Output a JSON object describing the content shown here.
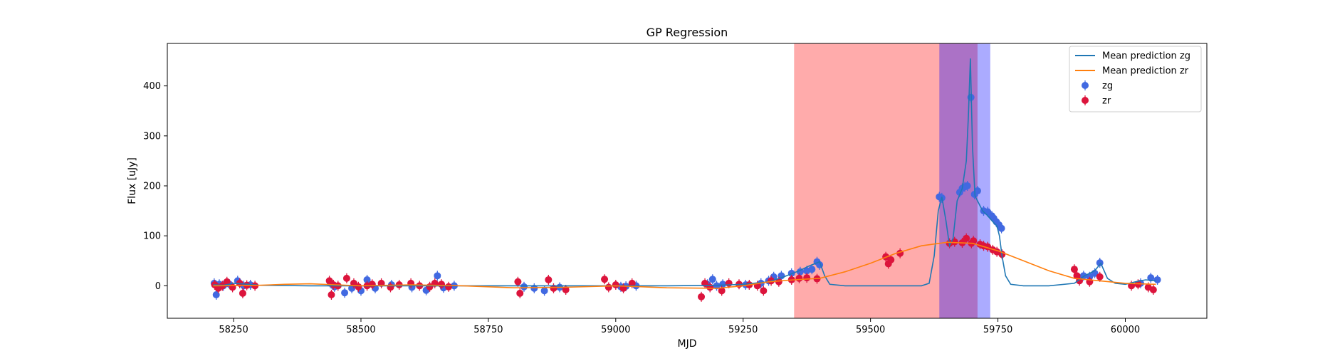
{
  "chart_data": {
    "type": "line",
    "title": "GP Regression",
    "xlabel": "MJD",
    "ylabel": "Flux [uJy]",
    "xlim": [
      58120,
      60160
    ],
    "ylim": [
      -65,
      485
    ],
    "xticks": [
      58250,
      58500,
      58750,
      59000,
      59250,
      59500,
      59750,
      60000
    ],
    "yticks": [
      0,
      100,
      200,
      300,
      400
    ],
    "legend_position": "top-right",
    "spans": [
      {
        "x0": 59350,
        "x1": 59710,
        "color": "#ff0000",
        "opacity": 0.33
      },
      {
        "x0": 59635,
        "x1": 59735,
        "color": "#0000ff",
        "opacity": 0.33
      }
    ],
    "series": [
      {
        "name": "Mean prediction zg",
        "kind": "line",
        "color": "#1f77b4",
        "x": [
          58210,
          58230,
          58250,
          58280,
          58300,
          58400,
          58500,
          58600,
          58700,
          58800,
          58900,
          59000,
          59100,
          59200,
          59250,
          59300,
          59330,
          59360,
          59380,
          59400,
          59410,
          59420,
          59450,
          59500,
          59550,
          59600,
          59615,
          59625,
          59633,
          59640,
          59648,
          59655,
          59662,
          59670,
          59680,
          59688,
          59692,
          59696,
          59700,
          59705,
          59710,
          59720,
          59730,
          59740,
          59748,
          59753,
          59758,
          59765,
          59775,
          59800,
          59850,
          59900,
          59920,
          59940,
          59952,
          59965,
          59980,
          60000,
          60020,
          60040,
          60060
        ],
        "y": [
          2,
          1,
          5,
          3,
          1,
          0,
          0,
          0,
          0,
          0,
          0,
          0,
          0,
          1,
          3,
          8,
          18,
          30,
          40,
          48,
          20,
          3,
          0,
          0,
          0,
          0,
          5,
          60,
          150,
          178,
          130,
          80,
          95,
          170,
          195,
          250,
          340,
          455,
          280,
          180,
          170,
          150,
          140,
          128,
          120,
          100,
          60,
          20,
          3,
          0,
          0,
          5,
          20,
          30,
          45,
          15,
          5,
          3,
          8,
          12,
          10
        ]
      },
      {
        "name": "Mean prediction zr",
        "kind": "line",
        "color": "#ff7f0e",
        "x": [
          58210,
          58300,
          58350,
          58400,
          58450,
          58500,
          58600,
          58700,
          58800,
          58900,
          59000,
          59100,
          59200,
          59250,
          59300,
          59350,
          59400,
          59450,
          59500,
          59550,
          59600,
          59650,
          59700,
          59750,
          59800,
          59850,
          59900,
          59950,
          60000,
          60060
        ],
        "y": [
          0,
          1,
          3,
          4,
          2,
          0,
          2,
          0,
          -4,
          -3,
          0,
          -4,
          -5,
          0,
          8,
          12,
          15,
          28,
          45,
          65,
          80,
          87,
          85,
          70,
          50,
          30,
          15,
          10,
          5,
          3
        ]
      },
      {
        "name": "zg",
        "kind": "scatter",
        "color": "#4169e1",
        "x": [
          58212,
          58216,
          58222,
          58230,
          58242,
          58258,
          58270,
          58283,
          58440,
          58448,
          58468,
          58482,
          58500,
          58512,
          58528,
          58560,
          58600,
          58628,
          58650,
          58662,
          58683,
          58820,
          58840,
          58860,
          58890,
          59010,
          59020,
          59040,
          59180,
          59190,
          59198,
          59210,
          59255,
          59285,
          59300,
          59310,
          59325,
          59345,
          59362,
          59375,
          59385,
          59395,
          59400,
          59635,
          59640,
          59675,
          59680,
          59685,
          59690,
          59697,
          59704,
          59710,
          59722,
          59730,
          59738,
          59742,
          59747,
          59752,
          59757,
          59918,
          59930,
          59940,
          59950,
          60030,
          60050,
          60063
        ],
        "y": [
          5,
          -18,
          3,
          0,
          3,
          10,
          0,
          2,
          5,
          -2,
          -14,
          -5,
          -10,
          12,
          -5,
          2,
          -3,
          -9,
          20,
          -4,
          0,
          -2,
          -5,
          -10,
          -3,
          -2,
          -1,
          0,
          3,
          13,
          0,
          3,
          2,
          5,
          10,
          18,
          20,
          25,
          28,
          30,
          33,
          48,
          42,
          178,
          176,
          187,
          195,
          198,
          200,
          377,
          183,
          190,
          150,
          148,
          140,
          135,
          128,
          122,
          115,
          20,
          18,
          25,
          46,
          5,
          16,
          12
        ]
      },
      {
        "name": "zr",
        "kind": "scatter",
        "color": "#dc143c",
        "x": [
          58213,
          58220,
          58228,
          58237,
          58248,
          58262,
          58268,
          58276,
          58292,
          58438,
          58442,
          58446,
          58455,
          58472,
          58486,
          58495,
          58512,
          58522,
          58540,
          58558,
          58575,
          58598,
          58615,
          58635,
          58645,
          58658,
          58672,
          58808,
          58812,
          58868,
          58878,
          58902,
          58978,
          58986,
          59000,
          59015,
          59032,
          59168,
          59175,
          59185,
          59208,
          59222,
          59242,
          59262,
          59278,
          59290,
          59305,
          59320,
          59345,
          59360,
          59375,
          59395,
          59530,
          59535,
          59540,
          59558,
          59655,
          59665,
          59680,
          59688,
          59698,
          59702,
          59715,
          59722,
          59730,
          59740,
          59748,
          59758,
          59900,
          59905,
          59910,
          59930,
          59950,
          60012,
          60025,
          60045,
          60055
        ],
        "y": [
          2,
          -5,
          0,
          8,
          -3,
          5,
          -15,
          1,
          0,
          10,
          -18,
          2,
          0,
          15,
          5,
          -2,
          0,
          3,
          5,
          -3,
          2,
          5,
          0,
          -2,
          5,
          3,
          -2,
          8,
          -15,
          12,
          -5,
          -8,
          13,
          -3,
          2,
          -5,
          5,
          -22,
          5,
          -3,
          -10,
          5,
          3,
          2,
          0,
          -10,
          10,
          8,
          12,
          15,
          16,
          14,
          58,
          44,
          52,
          65,
          85,
          88,
          86,
          95,
          85,
          90,
          83,
          80,
          78,
          72,
          68,
          63,
          33,
          20,
          10,
          8,
          18,
          0,
          3,
          -3,
          -8
        ]
      }
    ]
  }
}
